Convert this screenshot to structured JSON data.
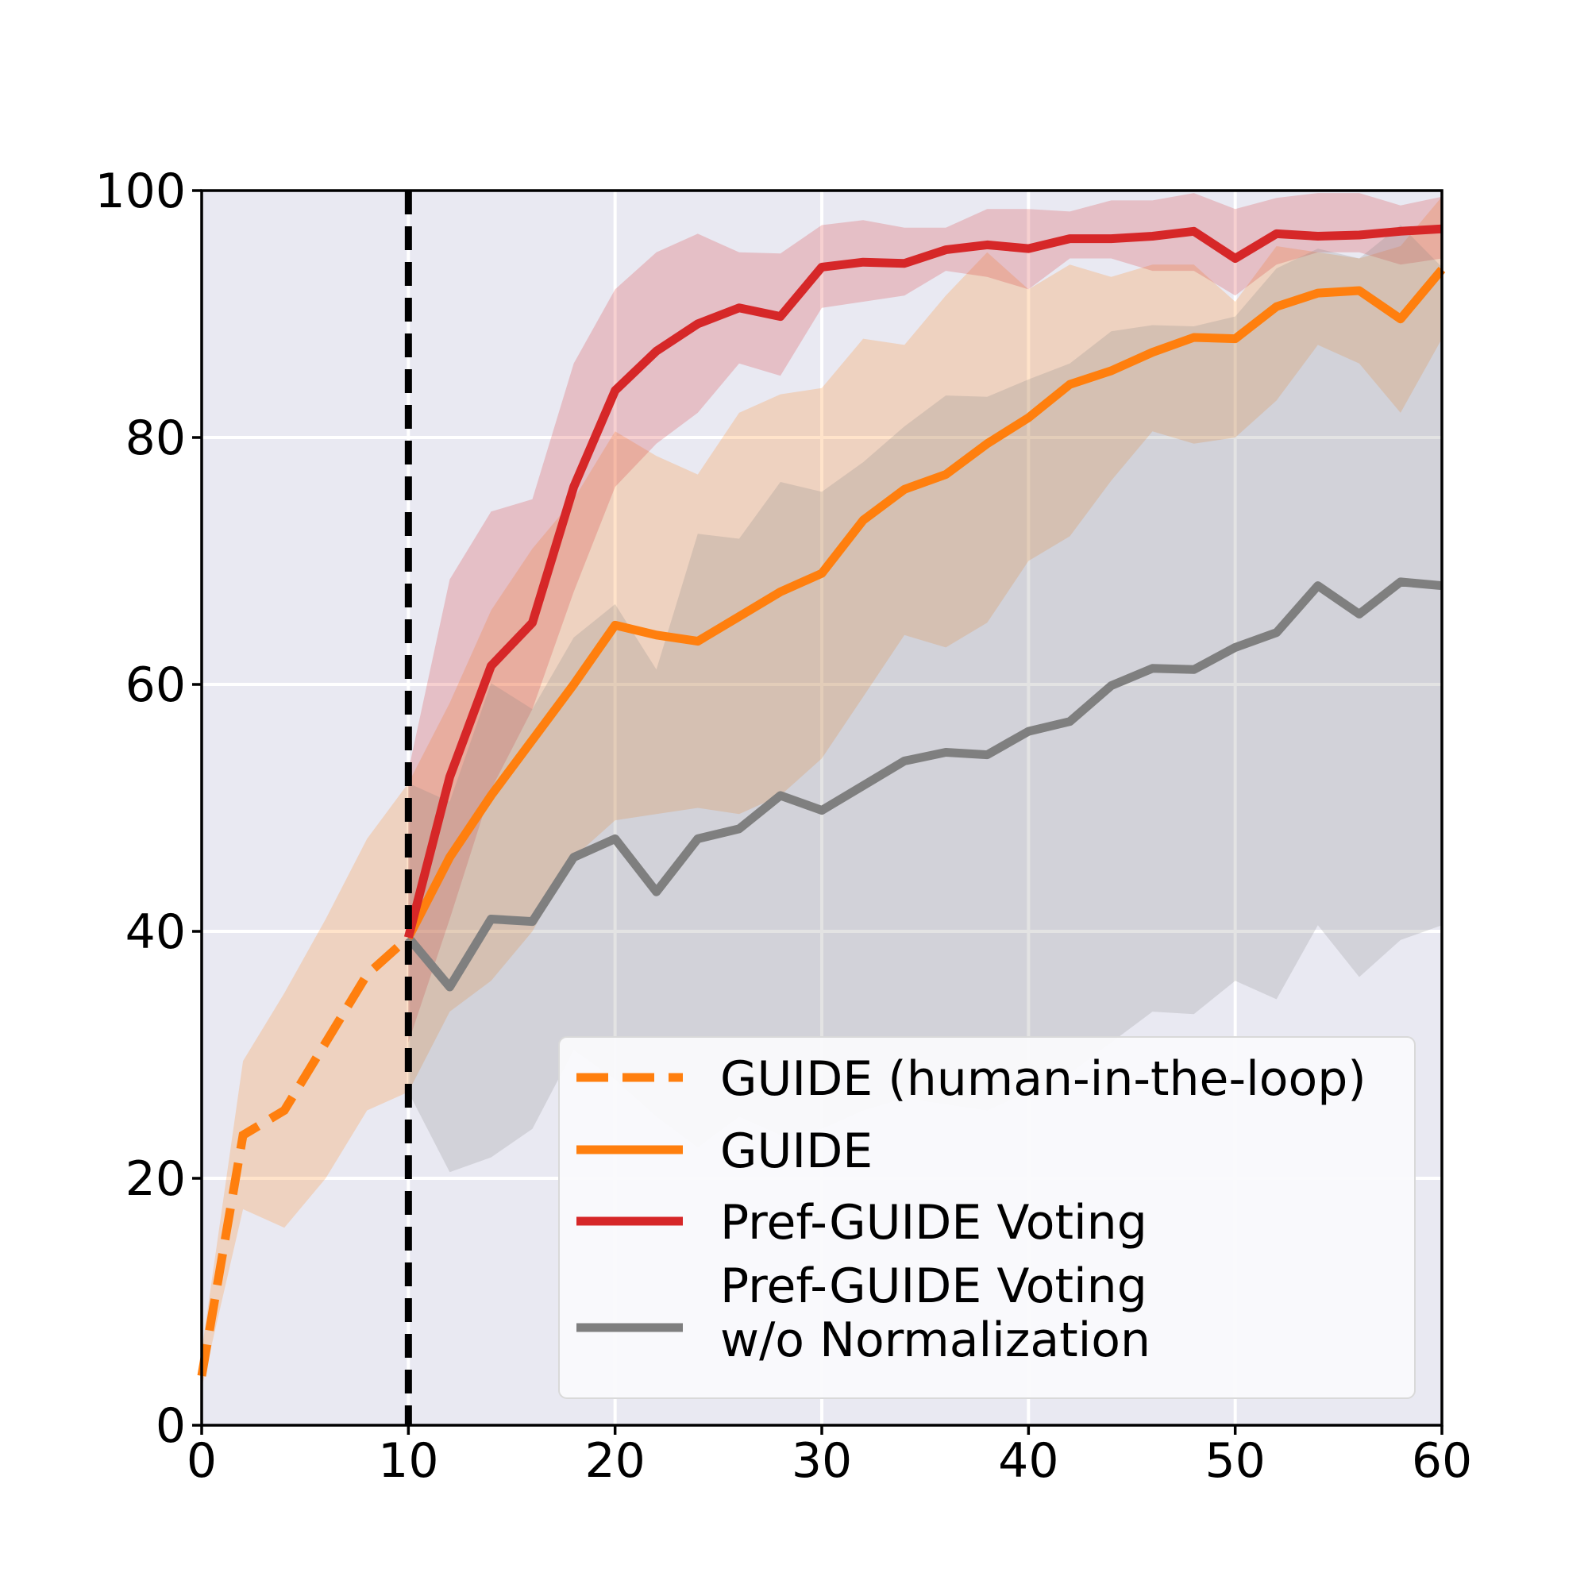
{
  "chart_data": {
    "type": "line",
    "title": "",
    "xlabel": "",
    "ylabel": "",
    "xlim": [
      0,
      60
    ],
    "ylim": [
      0,
      100
    ],
    "xticks": [
      0,
      10,
      20,
      30,
      40,
      50,
      60
    ],
    "yticks": [
      0,
      20,
      40,
      60,
      80,
      100
    ],
    "xtick_labels": [
      "0",
      "10",
      "20",
      "30",
      "40",
      "50",
      "60"
    ],
    "ytick_labels": [
      "0",
      "20",
      "40",
      "60",
      "80",
      "100"
    ],
    "grid": true,
    "vertical_line_x": 10,
    "legend_position": "lower right",
    "background_color": "#e9e9f2",
    "series": [
      {
        "name": "GUIDE (human-in-the-loop)",
        "style": "dashed",
        "color": "#ff7f0e",
        "x": [
          0,
          2,
          4,
          6,
          8,
          10
        ],
        "y": [
          4,
          23.5,
          25.5,
          31,
          36.5,
          39.5
        ],
        "lower": [
          3,
          17.5,
          16,
          20,
          25.5,
          27
        ],
        "upper": [
          6,
          29.5,
          35,
          41,
          47.5,
          52
        ]
      },
      {
        "name": "GUIDE",
        "style": "solid",
        "color": "#ff7f0e",
        "x": [
          10,
          12,
          14,
          16,
          18,
          20,
          22,
          24,
          26,
          28,
          30,
          32,
          34,
          36,
          38,
          40,
          42,
          44,
          46,
          48,
          50,
          52,
          54,
          56,
          58,
          60
        ],
        "y": [
          39.5,
          46,
          51,
          55.5,
          60,
          64.8,
          64,
          63.5,
          65.5,
          67.5,
          69,
          73.3,
          75.8,
          77,
          79.5,
          81.6,
          84.3,
          85.4,
          86.9,
          88.1,
          88,
          90.6,
          91.7,
          91.9,
          89.6,
          93.6
        ],
        "lower": [
          27,
          33.5,
          36,
          40,
          46,
          49,
          49.5,
          50,
          49.5,
          51,
          54,
          59,
          64,
          63,
          65,
          70,
          72,
          76.5,
          80.5,
          79.5,
          80,
          83,
          87.5,
          86,
          82,
          88
        ],
        "upper": [
          52,
          58.5,
          66,
          71,
          75,
          80.5,
          78.5,
          77,
          82,
          83.5,
          84,
          88,
          87.5,
          91.5,
          95,
          92,
          94,
          93,
          94,
          94,
          91,
          95.5,
          95,
          94.5,
          95.5,
          99.5
        ]
      },
      {
        "name": "Pref-GUIDE Voting",
        "style": "solid",
        "color": "#d62728",
        "x": [
          10,
          12,
          14,
          16,
          18,
          20,
          22,
          24,
          26,
          28,
          30,
          32,
          34,
          36,
          38,
          40,
          42,
          44,
          46,
          48,
          50,
          52,
          54,
          56,
          58,
          60
        ],
        "y": [
          39.5,
          52.5,
          61.5,
          65,
          76,
          83.8,
          87,
          89.2,
          90.5,
          89.8,
          93.8,
          94.2,
          94.1,
          95.2,
          95.6,
          95.3,
          96.1,
          96.1,
          96.3,
          96.7,
          94.5,
          96.5,
          96.3,
          96.4,
          96.7,
          96.9
        ],
        "lower": [
          31,
          41,
          51.5,
          58,
          67.5,
          76,
          79.5,
          82,
          86,
          85,
          90.5,
          91,
          91.5,
          93.5,
          93,
          92,
          94.5,
          94.5,
          93.5,
          93.5,
          91.5,
          94,
          95,
          95,
          94,
          94.5
        ],
        "upper": [
          53,
          68.5,
          74,
          75,
          86,
          92,
          95,
          96.5,
          95,
          94.9,
          97.2,
          97.6,
          97,
          97,
          98.5,
          98.5,
          98.3,
          99.2,
          99.2,
          99.8,
          98.5,
          99.4,
          99.8,
          99.8,
          98.8,
          99.5
        ]
      },
      {
        "name": "Pref-GUIDE Voting\nw/o Normalization",
        "style": "solid",
        "color": "#7f7f7f",
        "x": [
          10,
          12,
          14,
          16,
          18,
          20,
          22,
          24,
          26,
          28,
          30,
          32,
          34,
          36,
          38,
          40,
          42,
          44,
          46,
          48,
          50,
          52,
          54,
          56,
          58,
          60
        ],
        "y": [
          39.5,
          35.5,
          41,
          40.8,
          46,
          47.5,
          43.2,
          47.5,
          48.3,
          51,
          49.8,
          51.8,
          53.8,
          54.5,
          54.3,
          56.2,
          57,
          59.9,
          61.3,
          61.2,
          63,
          64.2,
          68,
          65.7,
          68.3,
          68
        ],
        "lower": [
          27,
          20.5,
          21.7,
          24,
          30.4,
          28,
          25,
          22.5,
          25,
          23.5,
          24,
          25.5,
          26.5,
          26,
          25.5,
          27,
          28.5,
          31,
          33.5,
          33.3,
          36,
          34.5,
          40.5,
          36.3,
          39.3,
          40.5
        ],
        "upper": [
          52,
          50.5,
          60.1,
          58,
          63.8,
          66.5,
          61.2,
          72.2,
          71.8,
          76.4,
          75.6,
          78,
          80.9,
          83.4,
          83.3,
          84.7,
          86,
          88.6,
          89.1,
          89,
          89.8,
          93.7,
          95.3,
          94.5,
          97.2,
          93.8
        ]
      }
    ]
  }
}
